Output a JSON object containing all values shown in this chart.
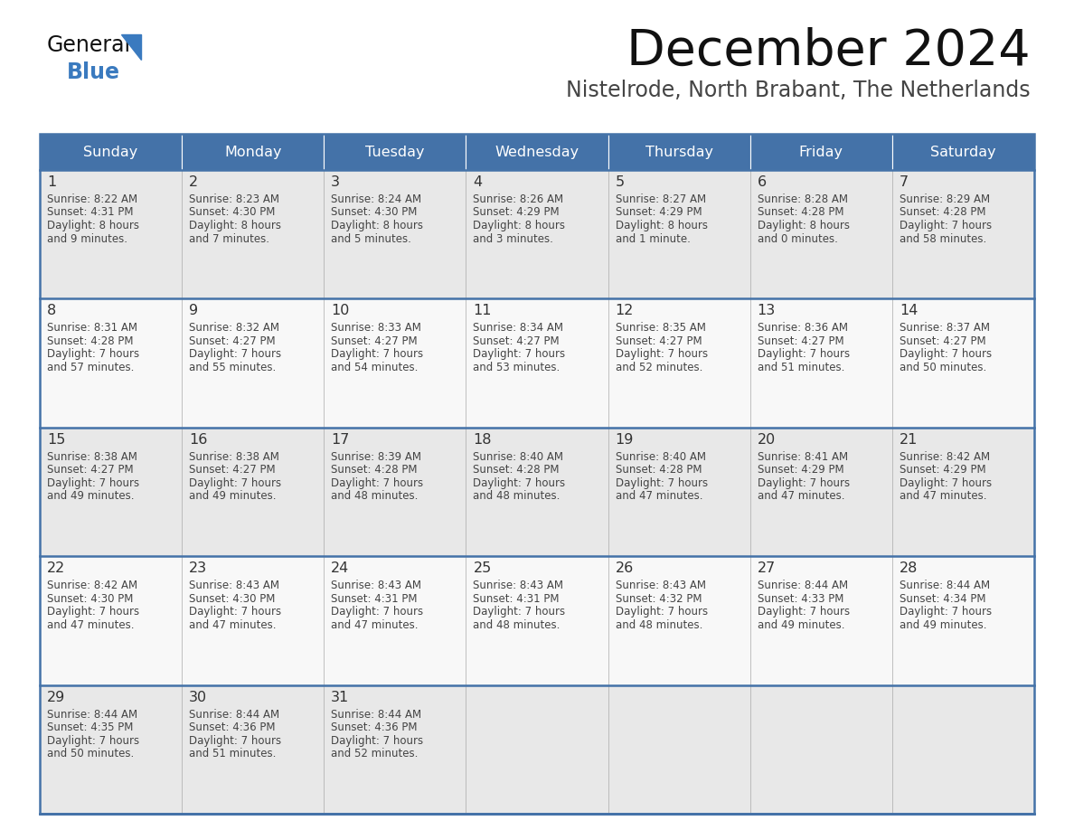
{
  "title": "December 2024",
  "subtitle": "Nistelrode, North Brabant, The Netherlands",
  "days_of_week": [
    "Sunday",
    "Monday",
    "Tuesday",
    "Wednesday",
    "Thursday",
    "Friday",
    "Saturday"
  ],
  "header_bg": "#4472a8",
  "header_text": "#ffffff",
  "cell_bg_odd": "#e8e8e8",
  "cell_bg_even": "#f8f8f8",
  "row_line_color": "#4472a8",
  "text_color": "#444444",
  "day_num_color": "#333333",
  "title_color": "#111111",
  "subtitle_color": "#444444",
  "logo_general_color": "#111111",
  "logo_blue_color": "#3a7abf",
  "weeks": [
    [
      {
        "day": 1,
        "sunrise": "8:22 AM",
        "sunset": "4:31 PM",
        "daylight_h": "8 hours",
        "daylight_m": "and 9 minutes."
      },
      {
        "day": 2,
        "sunrise": "8:23 AM",
        "sunset": "4:30 PM",
        "daylight_h": "8 hours",
        "daylight_m": "and 7 minutes."
      },
      {
        "day": 3,
        "sunrise": "8:24 AM",
        "sunset": "4:30 PM",
        "daylight_h": "8 hours",
        "daylight_m": "and 5 minutes."
      },
      {
        "day": 4,
        "sunrise": "8:26 AM",
        "sunset": "4:29 PM",
        "daylight_h": "8 hours",
        "daylight_m": "and 3 minutes."
      },
      {
        "day": 5,
        "sunrise": "8:27 AM",
        "sunset": "4:29 PM",
        "daylight_h": "8 hours",
        "daylight_m": "and 1 minute."
      },
      {
        "day": 6,
        "sunrise": "8:28 AM",
        "sunset": "4:28 PM",
        "daylight_h": "8 hours",
        "daylight_m": "and 0 minutes."
      },
      {
        "day": 7,
        "sunrise": "8:29 AM",
        "sunset": "4:28 PM",
        "daylight_h": "7 hours",
        "daylight_m": "and 58 minutes."
      }
    ],
    [
      {
        "day": 8,
        "sunrise": "8:31 AM",
        "sunset": "4:28 PM",
        "daylight_h": "7 hours",
        "daylight_m": "and 57 minutes."
      },
      {
        "day": 9,
        "sunrise": "8:32 AM",
        "sunset": "4:27 PM",
        "daylight_h": "7 hours",
        "daylight_m": "and 55 minutes."
      },
      {
        "day": 10,
        "sunrise": "8:33 AM",
        "sunset": "4:27 PM",
        "daylight_h": "7 hours",
        "daylight_m": "and 54 minutes."
      },
      {
        "day": 11,
        "sunrise": "8:34 AM",
        "sunset": "4:27 PM",
        "daylight_h": "7 hours",
        "daylight_m": "and 53 minutes."
      },
      {
        "day": 12,
        "sunrise": "8:35 AM",
        "sunset": "4:27 PM",
        "daylight_h": "7 hours",
        "daylight_m": "and 52 minutes."
      },
      {
        "day": 13,
        "sunrise": "8:36 AM",
        "sunset": "4:27 PM",
        "daylight_h": "7 hours",
        "daylight_m": "and 51 minutes."
      },
      {
        "day": 14,
        "sunrise": "8:37 AM",
        "sunset": "4:27 PM",
        "daylight_h": "7 hours",
        "daylight_m": "and 50 minutes."
      }
    ],
    [
      {
        "day": 15,
        "sunrise": "8:38 AM",
        "sunset": "4:27 PM",
        "daylight_h": "7 hours",
        "daylight_m": "and 49 minutes."
      },
      {
        "day": 16,
        "sunrise": "8:38 AM",
        "sunset": "4:27 PM",
        "daylight_h": "7 hours",
        "daylight_m": "and 49 minutes."
      },
      {
        "day": 17,
        "sunrise": "8:39 AM",
        "sunset": "4:28 PM",
        "daylight_h": "7 hours",
        "daylight_m": "and 48 minutes."
      },
      {
        "day": 18,
        "sunrise": "8:40 AM",
        "sunset": "4:28 PM",
        "daylight_h": "7 hours",
        "daylight_m": "and 48 minutes."
      },
      {
        "day": 19,
        "sunrise": "8:40 AM",
        "sunset": "4:28 PM",
        "daylight_h": "7 hours",
        "daylight_m": "and 47 minutes."
      },
      {
        "day": 20,
        "sunrise": "8:41 AM",
        "sunset": "4:29 PM",
        "daylight_h": "7 hours",
        "daylight_m": "and 47 minutes."
      },
      {
        "day": 21,
        "sunrise": "8:42 AM",
        "sunset": "4:29 PM",
        "daylight_h": "7 hours",
        "daylight_m": "and 47 minutes."
      }
    ],
    [
      {
        "day": 22,
        "sunrise": "8:42 AM",
        "sunset": "4:30 PM",
        "daylight_h": "7 hours",
        "daylight_m": "and 47 minutes."
      },
      {
        "day": 23,
        "sunrise": "8:43 AM",
        "sunset": "4:30 PM",
        "daylight_h": "7 hours",
        "daylight_m": "and 47 minutes."
      },
      {
        "day": 24,
        "sunrise": "8:43 AM",
        "sunset": "4:31 PM",
        "daylight_h": "7 hours",
        "daylight_m": "and 47 minutes."
      },
      {
        "day": 25,
        "sunrise": "8:43 AM",
        "sunset": "4:31 PM",
        "daylight_h": "7 hours",
        "daylight_m": "and 48 minutes."
      },
      {
        "day": 26,
        "sunrise": "8:43 AM",
        "sunset": "4:32 PM",
        "daylight_h": "7 hours",
        "daylight_m": "and 48 minutes."
      },
      {
        "day": 27,
        "sunrise": "8:44 AM",
        "sunset": "4:33 PM",
        "daylight_h": "7 hours",
        "daylight_m": "and 49 minutes."
      },
      {
        "day": 28,
        "sunrise": "8:44 AM",
        "sunset": "4:34 PM",
        "daylight_h": "7 hours",
        "daylight_m": "and 49 minutes."
      }
    ],
    [
      {
        "day": 29,
        "sunrise": "8:44 AM",
        "sunset": "4:35 PM",
        "daylight_h": "7 hours",
        "daylight_m": "and 50 minutes."
      },
      {
        "day": 30,
        "sunrise": "8:44 AM",
        "sunset": "4:36 PM",
        "daylight_h": "7 hours",
        "daylight_m": "and 51 minutes."
      },
      {
        "day": 31,
        "sunrise": "8:44 AM",
        "sunset": "4:36 PM",
        "daylight_h": "7 hours",
        "daylight_m": "and 52 minutes."
      },
      null,
      null,
      null,
      null
    ]
  ]
}
